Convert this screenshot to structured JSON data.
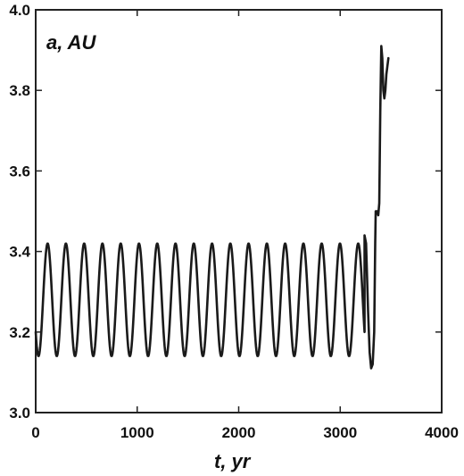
{
  "chart_data": {
    "type": "line",
    "xlabel": "t, yr",
    "ylabel": "a, AU",
    "xlim": [
      0,
      4000
    ],
    "ylim": [
      3.0,
      4.0
    ],
    "x_ticks": [
      0,
      1000,
      2000,
      3000,
      4000
    ],
    "x_tick_labels": [
      "0",
      "1000",
      "2000",
      "3000",
      "4000"
    ],
    "y_ticks": [
      3.0,
      3.2,
      3.4,
      3.6,
      3.8,
      4.0
    ],
    "y_tick_labels": [
      "3.0",
      "3.2",
      "3.4",
      "3.6",
      "3.8",
      "4.0"
    ],
    "grid": false,
    "series": [
      {
        "values": {
          "oscillation": {
            "t_start": 0,
            "t_end": 3240,
            "period": 180,
            "min": 3.14,
            "max": 3.42,
            "start_value": 3.2
          },
          "tail": [
            {
              "t": 3240,
              "a": 3.44
            },
            {
              "t": 3255,
              "a": 3.42
            },
            {
              "t": 3275,
              "a": 3.25
            },
            {
              "t": 3290,
              "a": 3.15
            },
            {
              "t": 3305,
              "a": 3.11
            },
            {
              "t": 3320,
              "a": 3.12
            },
            {
              "t": 3335,
              "a": 3.2
            },
            {
              "t": 3345,
              "a": 3.42
            },
            {
              "t": 3350,
              "a": 3.5
            },
            {
              "t": 3365,
              "a": 3.5
            },
            {
              "t": 3375,
              "a": 3.49
            },
            {
              "t": 3385,
              "a": 3.52
            },
            {
              "t": 3395,
              "a": 3.75
            },
            {
              "t": 3405,
              "a": 3.91
            },
            {
              "t": 3415,
              "a": 3.88
            },
            {
              "t": 3425,
              "a": 3.8
            },
            {
              "t": 3435,
              "a": 3.78
            },
            {
              "t": 3445,
              "a": 3.8
            },
            {
              "t": 3455,
              "a": 3.84
            },
            {
              "t": 3470,
              "a": 3.87
            },
            {
              "t": 3475,
              "a": 3.88
            }
          ]
        }
      }
    ]
  }
}
